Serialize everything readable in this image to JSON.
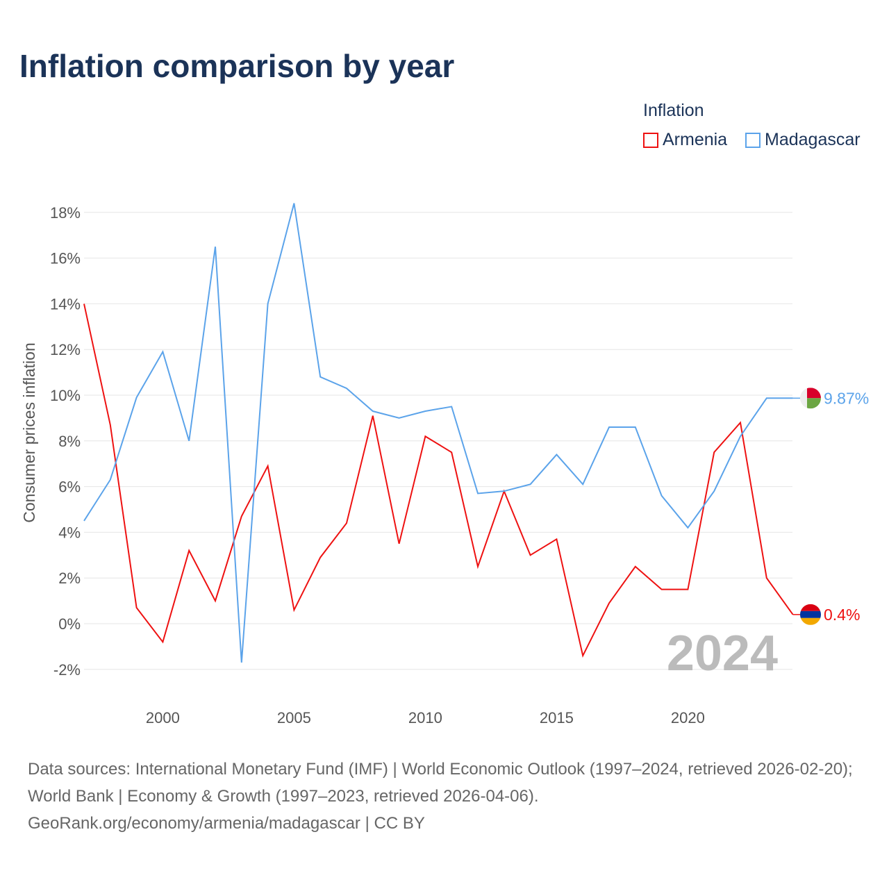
{
  "chart_data": {
    "type": "line",
    "title": "Inflation comparison by year",
    "ylabel": "Consumer prices inflation",
    "xlabel": "",
    "ylim": [
      -2,
      18
    ],
    "xlim": [
      1997,
      2024
    ],
    "yticks": [
      "-2%",
      "0%",
      "2%",
      "4%",
      "6%",
      "8%",
      "10%",
      "12%",
      "14%",
      "16%",
      "18%"
    ],
    "xticks": [
      "2000",
      "2005",
      "2010",
      "2015",
      "2020"
    ],
    "legend": {
      "title": "Inflation",
      "placement": "top-right"
    },
    "watermark_year": "2024",
    "x": [
      1997,
      1998,
      1999,
      2000,
      2001,
      2002,
      2003,
      2004,
      2005,
      2006,
      2007,
      2008,
      2009,
      2010,
      2011,
      2012,
      2013,
      2014,
      2015,
      2016,
      2017,
      2018,
      2019,
      2020,
      2021,
      2022,
      2023,
      2024
    ],
    "series": [
      {
        "name": "Armenia",
        "color": "#ee1111",
        "end_label": "0.4%",
        "values": [
          14.0,
          8.7,
          0.7,
          -0.8,
          3.2,
          1.0,
          4.7,
          6.9,
          0.6,
          2.9,
          4.4,
          9.1,
          3.5,
          8.2,
          7.5,
          2.5,
          5.8,
          3.0,
          3.7,
          -1.4,
          0.9,
          2.5,
          1.5,
          1.5,
          7.5,
          8.8,
          2.0,
          0.4
        ]
      },
      {
        "name": "Madagascar",
        "color": "#5ba3ea",
        "end_label": "9.87%",
        "values": [
          4.5,
          6.3,
          9.9,
          11.9,
          8.0,
          16.5,
          -1.7,
          14.0,
          18.4,
          10.8,
          10.3,
          9.3,
          9.0,
          9.3,
          9.5,
          5.7,
          5.8,
          6.1,
          7.4,
          6.1,
          8.6,
          8.6,
          5.6,
          4.2,
          5.8,
          8.2,
          9.87,
          9.87
        ]
      }
    ]
  },
  "footer": {
    "line1": "Data sources: International Monetary Fund (IMF) | World Economic Outlook (1997–2024, retrieved 2026-02-20); World Bank | Economy & Growth (1997–2023, retrieved 2026-04-06).",
    "line2": "GeoRank.org/economy/armenia/madagascar | CC BY"
  }
}
